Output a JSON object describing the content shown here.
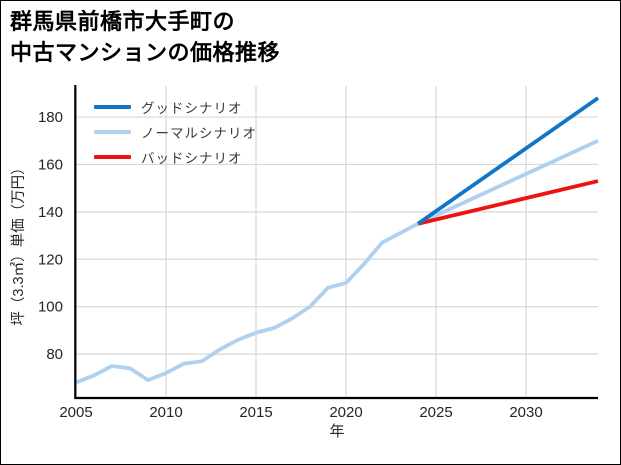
{
  "title": {
    "line1": "群馬県前橋市大手町の",
    "line2": "中古マンションの価格推移"
  },
  "colors": {
    "background": "#ffffff",
    "grid": "#d7d7d7",
    "spine": "#000000",
    "tick_label": "#262626",
    "legend_text": "#3a3a3a",
    "good_scenario": "#1175c8",
    "normal_scenario": "#aed1f2",
    "bad_scenario": "#ee1212"
  },
  "chart_data": {
    "type": "line",
    "title": "群馬県前橋市大手町の中古マンションの価格推移",
    "xlabel": "年",
    "ylabel": "坪（3.3㎡）単価（万円）",
    "xlim": [
      2005,
      2034
    ],
    "ylim": [
      61.9,
      193.1
    ],
    "x_ticks": [
      2005,
      2010,
      2015,
      2020,
      2025,
      2030
    ],
    "y_ticks": [
      80,
      100,
      120,
      140,
      160,
      180
    ],
    "grid": true,
    "legend_position": "upper-left",
    "series": [
      {
        "name": "グッドシナリオ",
        "color": "#1175c8",
        "x": [
          2024,
          2034
        ],
        "values": [
          135,
          188
        ]
      },
      {
        "name": "ノーマルシナリオ",
        "color": "#aed1f2",
        "x": [
          2005,
          2006,
          2007,
          2008,
          2009,
          2010,
          2011,
          2012,
          2013,
          2014,
          2015,
          2016,
          2017,
          2018,
          2019,
          2020,
          2021,
          2022,
          2023,
          2024,
          2034
        ],
        "values": [
          68,
          71,
          75,
          74,
          69,
          72,
          76,
          77,
          82,
          86,
          89,
          91,
          95,
          100,
          108,
          110,
          118,
          127,
          131,
          135,
          170
        ]
      },
      {
        "name": "バッドシナリオ",
        "color": "#ee1212",
        "x": [
          2024,
          2034
        ],
        "values": [
          135,
          153
        ]
      }
    ]
  }
}
